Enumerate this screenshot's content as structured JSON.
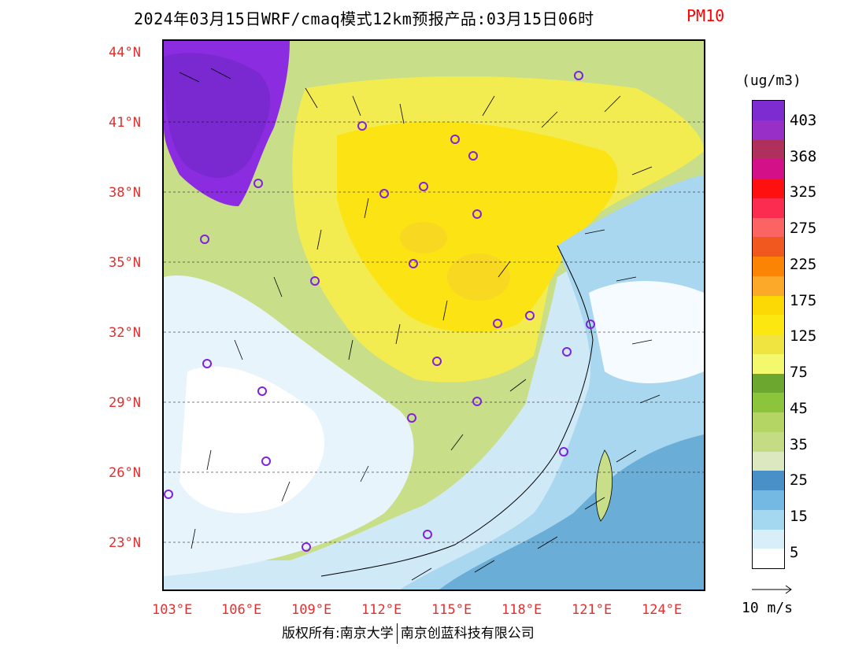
{
  "title": {
    "main": "2024年03月15日WRF/cmaq模式12km预报产品:03月15日06时",
    "pollutant": "PM10"
  },
  "latitude_labels": [
    "44°N",
    "41°N",
    "38°N",
    "35°N",
    "32°N",
    "29°N",
    "26°N",
    "23°N"
  ],
  "longitude_labels": [
    "103°E",
    "106°E",
    "109°E",
    "112°E",
    "115°E",
    "118°E",
    "121°E",
    "124°E"
  ],
  "legend": {
    "unit": "(ug/m3)",
    "labels": [
      "403",
      "368",
      "325",
      "275",
      "225",
      "175",
      "125",
      "75",
      "45",
      "35",
      "25",
      "15",
      "5"
    ],
    "colors": [
      "#ffffff",
      "#d8eef8",
      "#a4d8f0",
      "#74b8e4",
      "#4a90c8",
      "#dce8c0",
      "#c4dc84",
      "#b4d464",
      "#8cc43c",
      "#6ca830",
      "#f4f86c",
      "#f0e440",
      "#fce810",
      "#fcd804",
      "#fca828",
      "#fc8404",
      "#f05820",
      "#fc6464",
      "#fc2c50",
      "#ff1010",
      "#d41088",
      "#b0305c",
      "#9830c8",
      "#7c2cd0"
    ],
    "wind_reference": "10 m/s"
  },
  "copyright": {
    "left": "版权所有:南京大学",
    "right": "南京创蓝科技有限公司"
  }
}
